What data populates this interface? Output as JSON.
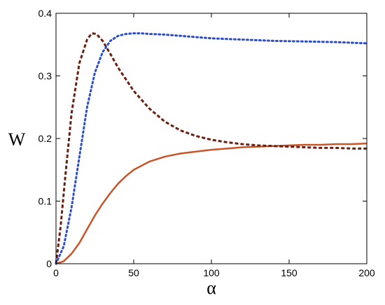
{
  "chart_data": {
    "type": "line",
    "xlabel": "α",
    "ylabel": "W",
    "xlim": [
      0,
      200
    ],
    "ylim": [
      0,
      0.4
    ],
    "x_ticks": [
      0,
      50,
      100,
      150,
      200
    ],
    "y_ticks": [
      0,
      0.1,
      0.2,
      0.3,
      0.4
    ],
    "x_tick_labels": [
      "0",
      "50",
      "100",
      "150",
      "200"
    ],
    "y_tick_labels": [
      "0",
      "0.1",
      "0.2",
      "0.3",
      "0.4"
    ],
    "grid": false,
    "series": [
      {
        "color": "#c8552a",
        "style": "solid",
        "x": [
          0,
          5,
          10,
          15,
          20,
          25,
          30,
          35,
          40,
          45,
          50,
          60,
          70,
          80,
          90,
          100,
          110,
          120,
          130,
          140,
          150,
          160,
          170,
          180,
          190,
          200
        ],
        "y": [
          0,
          0.004,
          0.016,
          0.033,
          0.055,
          0.077,
          0.096,
          0.113,
          0.128,
          0.14,
          0.15,
          0.163,
          0.171,
          0.176,
          0.179,
          0.182,
          0.184,
          0.186,
          0.187,
          0.188,
          0.189,
          0.19,
          0.19,
          0.191,
          0.191,
          0.192
        ]
      },
      {
        "color": "#6b1f10",
        "style": "dashed",
        "x": [
          0,
          3,
          6,
          10,
          15,
          20,
          23,
          26,
          30,
          35,
          40,
          50,
          60,
          70,
          80,
          90,
          100,
          110,
          120,
          130,
          140,
          150,
          160,
          170,
          180,
          190,
          200
        ],
        "y": [
          0,
          0.06,
          0.14,
          0.24,
          0.32,
          0.358,
          0.368,
          0.367,
          0.356,
          0.335,
          0.313,
          0.276,
          0.248,
          0.227,
          0.213,
          0.204,
          0.198,
          0.194,
          0.191,
          0.189,
          0.188,
          0.187,
          0.186,
          0.185,
          0.185,
          0.184,
          0.184
        ]
      },
      {
        "color": "#2b4ecf",
        "style": "dotted",
        "x": [
          0,
          5,
          10,
          15,
          20,
          25,
          30,
          35,
          40,
          45,
          50,
          55,
          60,
          70,
          80,
          90,
          100,
          120,
          140,
          160,
          180,
          200
        ],
        "y": [
          0,
          0.028,
          0.09,
          0.17,
          0.25,
          0.305,
          0.338,
          0.356,
          0.364,
          0.367,
          0.368,
          0.368,
          0.367,
          0.366,
          0.364,
          0.362,
          0.36,
          0.358,
          0.356,
          0.355,
          0.354,
          0.352
        ]
      }
    ]
  }
}
